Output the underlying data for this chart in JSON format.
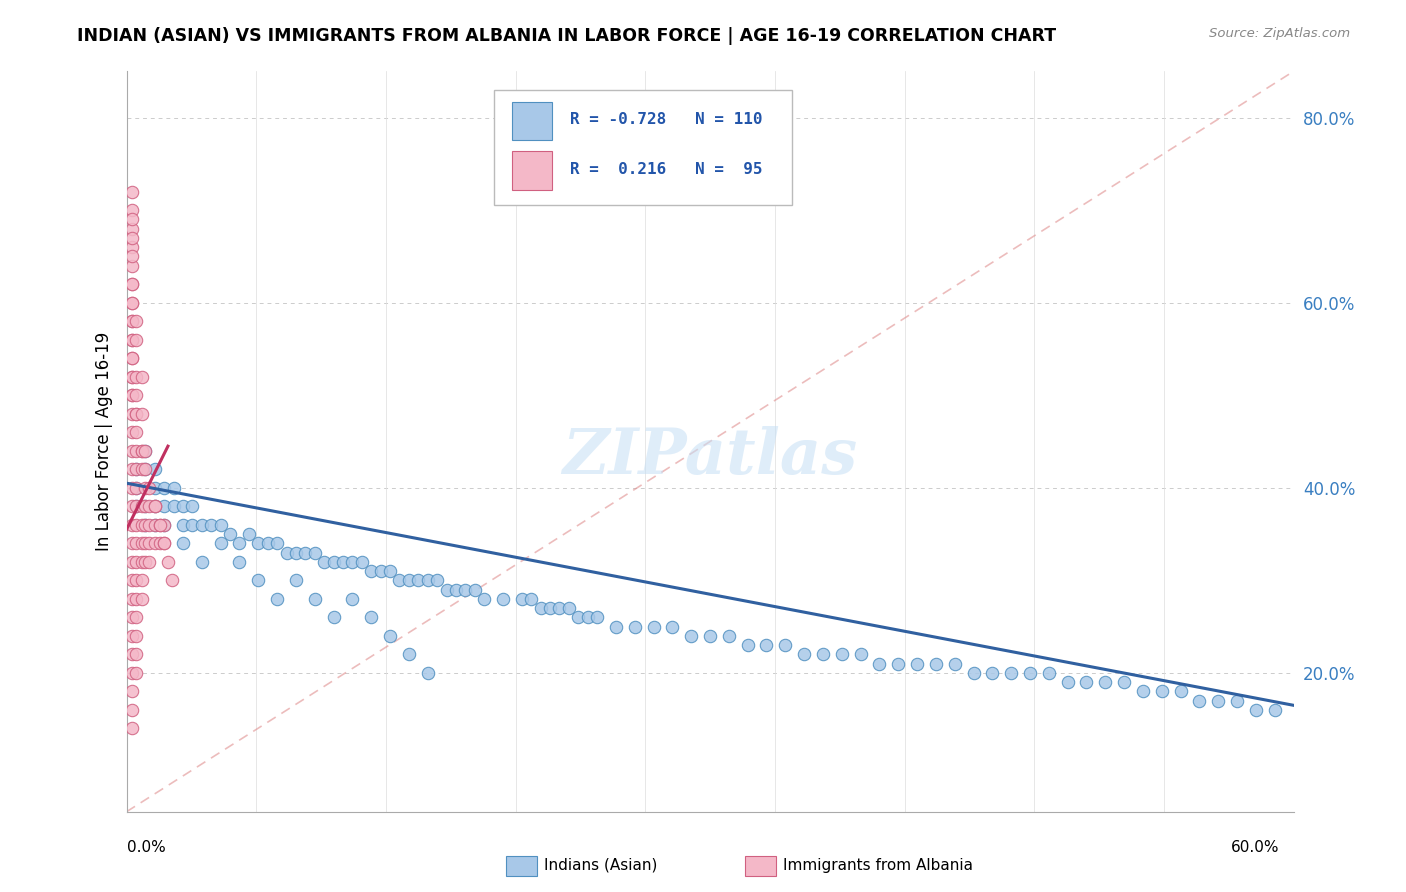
{
  "title": "INDIAN (ASIAN) VS IMMIGRANTS FROM ALBANIA IN LABOR FORCE | AGE 16-19 CORRELATION CHART",
  "source": "Source: ZipAtlas.com",
  "ylabel": "In Labor Force | Age 16-19",
  "yaxis_ticks": [
    0.2,
    0.4,
    0.6,
    0.8
  ],
  "yaxis_labels": [
    "20.0%",
    "40.0%",
    "60.0%",
    "80.0%"
  ],
  "xlim": [
    0.0,
    0.62
  ],
  "ylim": [
    0.05,
    0.85
  ],
  "blue_color": "#a8c8e8",
  "pink_color": "#f4b8c8",
  "blue_edge_color": "#5090c0",
  "pink_edge_color": "#d06080",
  "blue_line_color": "#3060a0",
  "pink_line_color": "#c03060",
  "watermark": "ZIPatlas",
  "blue_scatter_x": [
    0.005,
    0.005,
    0.005,
    0.01,
    0.01,
    0.01,
    0.01,
    0.015,
    0.015,
    0.015,
    0.015,
    0.02,
    0.02,
    0.02,
    0.025,
    0.025,
    0.03,
    0.03,
    0.035,
    0.035,
    0.04,
    0.045,
    0.05,
    0.055,
    0.06,
    0.065,
    0.07,
    0.075,
    0.08,
    0.085,
    0.09,
    0.095,
    0.1,
    0.105,
    0.11,
    0.115,
    0.12,
    0.125,
    0.13,
    0.135,
    0.14,
    0.145,
    0.15,
    0.155,
    0.16,
    0.165,
    0.17,
    0.175,
    0.18,
    0.185,
    0.19,
    0.2,
    0.21,
    0.215,
    0.22,
    0.225,
    0.23,
    0.235,
    0.24,
    0.245,
    0.25,
    0.26,
    0.27,
    0.28,
    0.29,
    0.3,
    0.31,
    0.32,
    0.33,
    0.34,
    0.35,
    0.36,
    0.37,
    0.38,
    0.39,
    0.4,
    0.41,
    0.42,
    0.43,
    0.44,
    0.45,
    0.46,
    0.47,
    0.48,
    0.49,
    0.5,
    0.51,
    0.52,
    0.53,
    0.54,
    0.55,
    0.56,
    0.57,
    0.58,
    0.59,
    0.6,
    0.61,
    0.03,
    0.04,
    0.05,
    0.06,
    0.07,
    0.08,
    0.09,
    0.1,
    0.11,
    0.12,
    0.13,
    0.14,
    0.15,
    0.16
  ],
  "blue_scatter_y": [
    0.4,
    0.38,
    0.42,
    0.38,
    0.42,
    0.36,
    0.44,
    0.4,
    0.36,
    0.38,
    0.42,
    0.38,
    0.4,
    0.36,
    0.38,
    0.4,
    0.36,
    0.38,
    0.36,
    0.38,
    0.36,
    0.36,
    0.36,
    0.35,
    0.34,
    0.35,
    0.34,
    0.34,
    0.34,
    0.33,
    0.33,
    0.33,
    0.33,
    0.32,
    0.32,
    0.32,
    0.32,
    0.32,
    0.31,
    0.31,
    0.31,
    0.3,
    0.3,
    0.3,
    0.3,
    0.3,
    0.29,
    0.29,
    0.29,
    0.29,
    0.28,
    0.28,
    0.28,
    0.28,
    0.27,
    0.27,
    0.27,
    0.27,
    0.26,
    0.26,
    0.26,
    0.25,
    0.25,
    0.25,
    0.25,
    0.24,
    0.24,
    0.24,
    0.23,
    0.23,
    0.23,
    0.22,
    0.22,
    0.22,
    0.22,
    0.21,
    0.21,
    0.21,
    0.21,
    0.21,
    0.2,
    0.2,
    0.2,
    0.2,
    0.2,
    0.19,
    0.19,
    0.19,
    0.19,
    0.18,
    0.18,
    0.18,
    0.17,
    0.17,
    0.17,
    0.16,
    0.16,
    0.34,
    0.32,
    0.34,
    0.32,
    0.3,
    0.28,
    0.3,
    0.28,
    0.26,
    0.28,
    0.26,
    0.24,
    0.22,
    0.2
  ],
  "pink_scatter_x": [
    0.003,
    0.003,
    0.003,
    0.003,
    0.003,
    0.003,
    0.003,
    0.003,
    0.003,
    0.003,
    0.003,
    0.003,
    0.003,
    0.003,
    0.003,
    0.003,
    0.003,
    0.003,
    0.003,
    0.003,
    0.003,
    0.003,
    0.003,
    0.003,
    0.003,
    0.003,
    0.003,
    0.003,
    0.003,
    0.003,
    0.005,
    0.005,
    0.005,
    0.005,
    0.005,
    0.005,
    0.005,
    0.005,
    0.005,
    0.005,
    0.005,
    0.005,
    0.005,
    0.005,
    0.005,
    0.008,
    0.008,
    0.008,
    0.008,
    0.008,
    0.008,
    0.008,
    0.008,
    0.01,
    0.01,
    0.01,
    0.01,
    0.01,
    0.012,
    0.012,
    0.012,
    0.012,
    0.015,
    0.015,
    0.015,
    0.018,
    0.018,
    0.02,
    0.02,
    0.022,
    0.024,
    0.003,
    0.003,
    0.003,
    0.005,
    0.005,
    0.008,
    0.01,
    0.012,
    0.015,
    0.018,
    0.02,
    0.003,
    0.003,
    0.005,
    0.008,
    0.01,
    0.003,
    0.005,
    0.008,
    0.003,
    0.005,
    0.003,
    0.003,
    0.003
  ],
  "pink_scatter_y": [
    0.38,
    0.4,
    0.42,
    0.44,
    0.46,
    0.48,
    0.5,
    0.52,
    0.54,
    0.56,
    0.58,
    0.36,
    0.34,
    0.32,
    0.3,
    0.28,
    0.26,
    0.24,
    0.22,
    0.2,
    0.18,
    0.16,
    0.14,
    0.62,
    0.64,
    0.66,
    0.68,
    0.7,
    0.72,
    0.6,
    0.38,
    0.4,
    0.42,
    0.44,
    0.46,
    0.48,
    0.36,
    0.34,
    0.32,
    0.3,
    0.28,
    0.26,
    0.24,
    0.22,
    0.2,
    0.38,
    0.36,
    0.34,
    0.32,
    0.3,
    0.28,
    0.44,
    0.42,
    0.38,
    0.36,
    0.34,
    0.32,
    0.4,
    0.38,
    0.36,
    0.34,
    0.32,
    0.36,
    0.34,
    0.38,
    0.34,
    0.36,
    0.36,
    0.34,
    0.32,
    0.3,
    0.5,
    0.52,
    0.54,
    0.48,
    0.5,
    0.44,
    0.42,
    0.4,
    0.38,
    0.36,
    0.34,
    0.56,
    0.58,
    0.52,
    0.48,
    0.44,
    0.6,
    0.56,
    0.52,
    0.62,
    0.58,
    0.65,
    0.67,
    0.69
  ]
}
